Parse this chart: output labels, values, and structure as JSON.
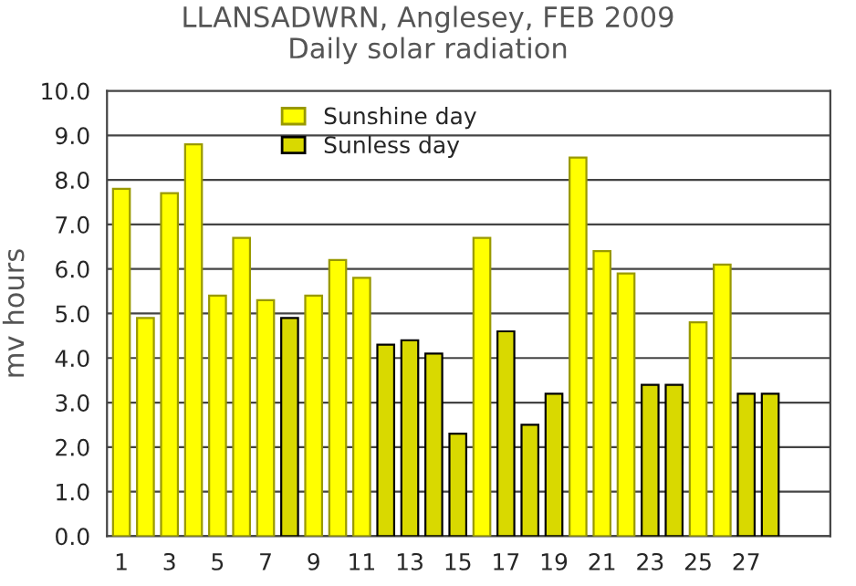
{
  "chart_data": {
    "type": "bar",
    "title": "LLANSADWRN, Anglesey, FEB 2009\nDaily solar radiation",
    "ylabel": "mv hours",
    "categories": [
      "1",
      null,
      "3",
      null,
      "5",
      null,
      "7",
      null,
      "9",
      null,
      "11",
      null,
      "13",
      null,
      "15",
      null,
      "17",
      null,
      "19",
      null,
      "21",
      null,
      "23",
      null,
      "25",
      null,
      "27",
      null
    ],
    "series": [
      {
        "name": "Sunshine day",
        "color": "#ffff00",
        "values": [
          7.8,
          4.9,
          7.7,
          8.8,
          5.4,
          6.7,
          5.3,
          null,
          5.4,
          6.2,
          5.8,
          null,
          null,
          null,
          null,
          6.7,
          null,
          null,
          null,
          8.5,
          6.4,
          5.9,
          null,
          null,
          4.8,
          6.1,
          null,
          null
        ]
      },
      {
        "name": "Sunless day",
        "color": "#d9d900",
        "values": [
          null,
          null,
          null,
          null,
          null,
          null,
          null,
          4.9,
          null,
          null,
          null,
          4.3,
          4.4,
          4.1,
          2.3,
          null,
          4.6,
          2.5,
          3.2,
          null,
          null,
          null,
          3.4,
          3.4,
          null,
          null,
          3.2,
          3.2
        ]
      }
    ],
    "ylim": [
      0,
      10
    ],
    "yticks": [
      {
        "value": 0,
        "label": "0.0"
      },
      {
        "value": 1,
        "label": "1.0"
      },
      {
        "value": 2,
        "label": "2.0"
      },
      {
        "value": 3,
        "label": "3.0"
      },
      {
        "value": 4,
        "label": "4.0"
      },
      {
        "value": 5,
        "label": "5.0"
      },
      {
        "value": 6,
        "label": "6.0"
      },
      {
        "value": 7,
        "label": "7.0"
      },
      {
        "value": 8,
        "label": "8.0"
      },
      {
        "value": 9,
        "label": "9.0"
      },
      {
        "value": 10,
        "label": "10.0"
      }
    ],
    "grid": "y",
    "legend": "top left"
  }
}
